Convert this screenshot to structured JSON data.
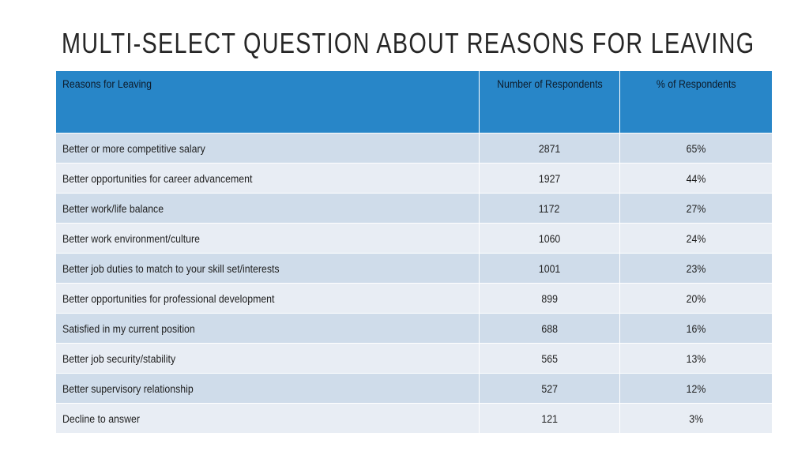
{
  "title": "MULTI-SELECT QUESTION ABOUT REASONS FOR LEAVING",
  "table": {
    "headers": [
      "Reasons for Leaving",
      "Number of Respondents",
      "% of Respondents"
    ],
    "rows": [
      {
        "reason": "Better or more competitive salary",
        "count": "2871",
        "percent": "65%"
      },
      {
        "reason": "Better opportunities for career advancement",
        "count": "1927",
        "percent": "44%"
      },
      {
        "reason": "Better work/life balance",
        "count": "1172",
        "percent": "27%"
      },
      {
        "reason": "Better work environment/culture",
        "count": "1060",
        "percent": "24%"
      },
      {
        "reason": "Better job duties to match to your skill set/interests",
        "count": "1001",
        "percent": "23%"
      },
      {
        "reason": "Better opportunities for professional development",
        "count": "899",
        "percent": "20%"
      },
      {
        "reason": "Satisfied in my current position",
        "count": "688",
        "percent": "16%"
      },
      {
        "reason": "Better job security/stability",
        "count": "565",
        "percent": "13%"
      },
      {
        "reason": "Better supervisory relationship",
        "count": "527",
        "percent": "12%"
      },
      {
        "reason": "Decline to answer",
        "count": "121",
        "percent": "3%"
      }
    ]
  },
  "colors": {
    "header_bg": "#2886c8",
    "row_odd": "#cfdcea",
    "row_even": "#e8edf4"
  }
}
